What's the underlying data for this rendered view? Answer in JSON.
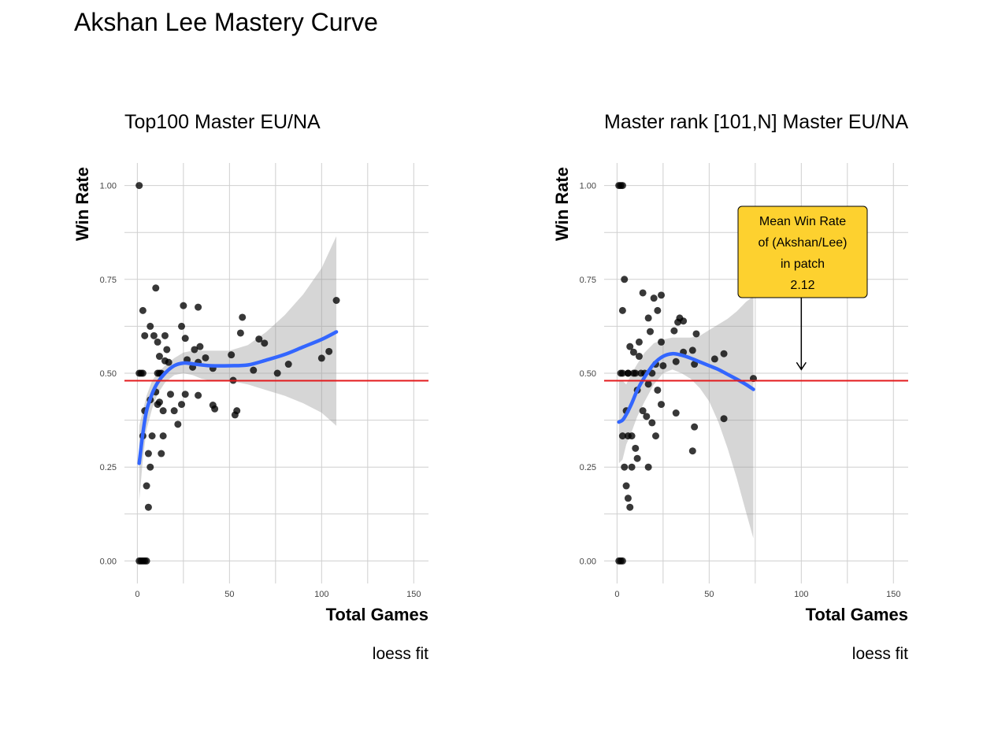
{
  "title": "Akshan Lee Mastery Curve",
  "chart_data": [
    {
      "type": "scatter",
      "subtitle": "Top100 Master EU/NA",
      "xlabel": "Total Games",
      "ylabel": "Win Rate",
      "caption": "loess fit",
      "xlim": [
        -7,
        158
      ],
      "ylim": [
        -0.06,
        1.06
      ],
      "x_ticks": [
        0,
        50,
        100,
        150
      ],
      "x_tick_labels": [
        "0",
        "50",
        "100",
        "150"
      ],
      "y_ticks": [
        0,
        0.25,
        0.5,
        0.75,
        1.0
      ],
      "y_tick_labels": [
        "0.00",
        "0.25",
        "0.50",
        "0.75",
        "1.00"
      ],
      "grid": true,
      "reference_line": {
        "y": 0.48,
        "color": "#e31a1c"
      },
      "points": [
        [
          1,
          1.0
        ],
        [
          1,
          0.0
        ],
        [
          2,
          0.0
        ],
        [
          3,
          0.0
        ],
        [
          4,
          0.0
        ],
        [
          5,
          0.0
        ],
        [
          1,
          0.5
        ],
        [
          2,
          0.5
        ],
        [
          3,
          0.5
        ],
        [
          3,
          0.333
        ],
        [
          3,
          0.667
        ],
        [
          4,
          0.6
        ],
        [
          4,
          0.4
        ],
        [
          5,
          0.2
        ],
        [
          6,
          0.143
        ],
        [
          6,
          0.286
        ],
        [
          7,
          0.25
        ],
        [
          7,
          0.429
        ],
        [
          7,
          0.625
        ],
        [
          8,
          0.333
        ],
        [
          9,
          0.6
        ],
        [
          10,
          0.727
        ],
        [
          10,
          0.45
        ],
        [
          11,
          0.5
        ],
        [
          11,
          0.417
        ],
        [
          11,
          0.583
        ],
        [
          12,
          0.545
        ],
        [
          12,
          0.5
        ],
        [
          12,
          0.423
        ],
        [
          13,
          0.286
        ],
        [
          13,
          0.5
        ],
        [
          14,
          0.333
        ],
        [
          14,
          0.4
        ],
        [
          15,
          0.6
        ],
        [
          15,
          0.533
        ],
        [
          16,
          0.563
        ],
        [
          17,
          0.529
        ],
        [
          18,
          0.444
        ],
        [
          20,
          0.4
        ],
        [
          22,
          0.364
        ],
        [
          24,
          0.417
        ],
        [
          24,
          0.625
        ],
        [
          25,
          0.68
        ],
        [
          26,
          0.593
        ],
        [
          26,
          0.444
        ],
        [
          27,
          0.536
        ],
        [
          30,
          0.516
        ],
        [
          31,
          0.563
        ],
        [
          33,
          0.676
        ],
        [
          33,
          0.441
        ],
        [
          33,
          0.529
        ],
        [
          34,
          0.571
        ],
        [
          37,
          0.541
        ],
        [
          41,
          0.513
        ],
        [
          41,
          0.415
        ],
        [
          42,
          0.405
        ],
        [
          51,
          0.549
        ],
        [
          52,
          0.481
        ],
        [
          53,
          0.389
        ],
        [
          54,
          0.4
        ],
        [
          56,
          0.607
        ],
        [
          57,
          0.649
        ],
        [
          63,
          0.508
        ],
        [
          66,
          0.591
        ],
        [
          69,
          0.58
        ],
        [
          76,
          0.5
        ],
        [
          82,
          0.524
        ],
        [
          100,
          0.54
        ],
        [
          104,
          0.558
        ],
        [
          108,
          0.694
        ]
      ],
      "fit_line": {
        "color": "#3366ff",
        "x": [
          1,
          3,
          5,
          8,
          11,
          15,
          20,
          25,
          30,
          35,
          40,
          50,
          60,
          70,
          80,
          90,
          100,
          108
        ],
        "y": [
          0.26,
          0.34,
          0.4,
          0.445,
          0.475,
          0.5,
          0.52,
          0.527,
          0.525,
          0.522,
          0.52,
          0.52,
          0.522,
          0.535,
          0.55,
          0.57,
          0.59,
          0.61
        ]
      },
      "confidence_band": {
        "x": [
          1,
          3,
          5,
          8,
          11,
          15,
          20,
          25,
          30,
          35,
          40,
          50,
          60,
          70,
          80,
          90,
          100,
          108
        ],
        "upper": [
          0.36,
          0.4,
          0.44,
          0.48,
          0.5,
          0.52,
          0.54,
          0.555,
          0.56,
          0.56,
          0.56,
          0.56,
          0.575,
          0.61,
          0.655,
          0.71,
          0.78,
          0.865
        ],
        "lower": [
          0.16,
          0.27,
          0.35,
          0.405,
          0.445,
          0.475,
          0.495,
          0.5,
          0.495,
          0.485,
          0.48,
          0.48,
          0.47,
          0.455,
          0.44,
          0.42,
          0.395,
          0.36
        ]
      }
    },
    {
      "type": "scatter",
      "subtitle": "Master rank [101,N] Master EU/NA",
      "xlabel": "Total Games",
      "ylabel": "Win Rate",
      "caption": "loess fit",
      "xlim": [
        -7,
        158
      ],
      "ylim": [
        -0.06,
        1.06
      ],
      "x_ticks": [
        0,
        50,
        100,
        150
      ],
      "x_tick_labels": [
        "0",
        "50",
        "100",
        "150"
      ],
      "y_ticks": [
        0,
        0.25,
        0.5,
        0.75,
        1.0
      ],
      "y_tick_labels": [
        "0.00",
        "0.25",
        "0.50",
        "0.75",
        "1.00"
      ],
      "grid": true,
      "reference_line": {
        "y": 0.48,
        "color": "#e31a1c"
      },
      "annotation": {
        "lines": [
          "Mean Win Rate",
          "of (Akshan/Lee)",
          "in patch",
          "2.12"
        ],
        "fill": "#fdd12f",
        "arrow_to": [
          100,
          0.51
        ]
      },
      "points": [
        [
          1,
          1.0
        ],
        [
          2,
          1.0
        ],
        [
          3,
          1.0
        ],
        [
          1,
          0.0
        ],
        [
          2,
          0.0
        ],
        [
          3,
          0.0
        ],
        [
          2,
          0.5
        ],
        [
          3,
          0.5
        ],
        [
          3,
          0.333
        ],
        [
          3,
          0.667
        ],
        [
          4,
          0.75
        ],
        [
          4,
          0.25
        ],
        [
          5,
          0.4
        ],
        [
          5,
          0.2
        ],
        [
          6,
          0.167
        ],
        [
          6,
          0.5
        ],
        [
          6,
          0.333
        ],
        [
          6,
          0.5
        ],
        [
          7,
          0.143
        ],
        [
          7,
          0.571
        ],
        [
          8,
          0.25
        ],
        [
          8,
          0.333
        ],
        [
          9,
          0.5
        ],
        [
          9,
          0.556
        ],
        [
          10,
          0.3
        ],
        [
          10,
          0.5
        ],
        [
          11,
          0.273
        ],
        [
          11,
          0.455
        ],
        [
          12,
          0.583
        ],
        [
          12,
          0.545
        ],
        [
          13,
          0.5
        ],
        [
          14,
          0.714
        ],
        [
          14,
          0.4
        ],
        [
          15,
          0.5
        ],
        [
          16,
          0.385
        ],
        [
          17,
          0.25
        ],
        [
          17,
          0.471
        ],
        [
          17,
          0.647
        ],
        [
          18,
          0.611
        ],
        [
          19,
          0.368
        ],
        [
          19,
          0.5
        ],
        [
          20,
          0.7
        ],
        [
          21,
          0.524
        ],
        [
          21,
          0.333
        ],
        [
          22,
          0.667
        ],
        [
          22,
          0.455
        ],
        [
          24,
          0.708
        ],
        [
          24,
          0.583
        ],
        [
          24,
          0.417
        ],
        [
          25,
          0.52
        ],
        [
          31,
          0.613
        ],
        [
          32,
          0.394
        ],
        [
          32,
          0.531
        ],
        [
          33,
          0.636
        ],
        [
          34,
          0.647
        ],
        [
          36,
          0.639
        ],
        [
          36,
          0.556
        ],
        [
          41,
          0.561
        ],
        [
          41,
          0.293
        ],
        [
          42,
          0.357
        ],
        [
          42,
          0.524
        ],
        [
          43,
          0.605
        ],
        [
          53,
          0.538
        ],
        [
          58,
          0.552
        ],
        [
          58,
          0.379
        ],
        [
          74,
          0.486
        ]
      ],
      "fit_line": {
        "color": "#3366ff",
        "x": [
          1,
          3,
          5,
          8,
          11,
          15,
          20,
          25,
          30,
          35,
          40,
          45,
          50,
          55,
          60,
          65,
          70,
          74
        ],
        "y": [
          0.37,
          0.375,
          0.39,
          0.42,
          0.455,
          0.49,
          0.525,
          0.545,
          0.552,
          0.548,
          0.54,
          0.53,
          0.52,
          0.51,
          0.497,
          0.484,
          0.47,
          0.457
        ]
      },
      "confidence_band": {
        "x": [
          1,
          3,
          5,
          8,
          11,
          15,
          20,
          25,
          30,
          35,
          40,
          45,
          50,
          55,
          60,
          65,
          70,
          74
        ],
        "upper": [
          0.48,
          0.48,
          0.47,
          0.5,
          0.525,
          0.555,
          0.58,
          0.59,
          0.595,
          0.595,
          0.595,
          0.6,
          0.615,
          0.63,
          0.645,
          0.665,
          0.69,
          0.705
        ],
        "lower": [
          0.26,
          0.27,
          0.31,
          0.345,
          0.385,
          0.425,
          0.47,
          0.5,
          0.51,
          0.5,
          0.485,
          0.46,
          0.425,
          0.37,
          0.3,
          0.22,
          0.13,
          0.06
        ]
      }
    }
  ]
}
